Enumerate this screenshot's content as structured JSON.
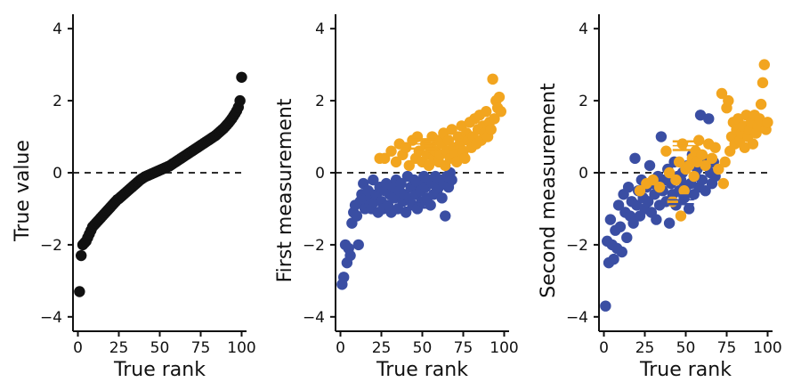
{
  "colors": {
    "black": "#111111",
    "blue": "#3a4ea3",
    "orange": "#f2a51f"
  },
  "chart_data": [
    {
      "type": "scatter",
      "xlabel": "True rank",
      "ylabel": "True value",
      "xlim": [
        -3,
        103
      ],
      "ylim": [
        -4.4,
        4.4
      ],
      "xticks": [
        0,
        25,
        50,
        75,
        100
      ],
      "yticks": [
        -4,
        -2,
        0,
        2,
        4
      ],
      "grid": false,
      "reference_line_y": 0,
      "series": [
        {
          "color": "black",
          "x": [
            1,
            2,
            3,
            4,
            5,
            6,
            7,
            8,
            9,
            10,
            11,
            12,
            13,
            14,
            15,
            16,
            17,
            18,
            19,
            20,
            21,
            22,
            23,
            24,
            25,
            26,
            27,
            28,
            29,
            30,
            31,
            32,
            33,
            34,
            35,
            36,
            37,
            38,
            39,
            40,
            41,
            42,
            43,
            44,
            45,
            46,
            47,
            48,
            49,
            50,
            51,
            52,
            53,
            54,
            55,
            56,
            57,
            58,
            59,
            60,
            61,
            62,
            63,
            64,
            65,
            66,
            67,
            68,
            69,
            70,
            71,
            72,
            73,
            74,
            75,
            76,
            77,
            78,
            79,
            80,
            81,
            82,
            83,
            84,
            85,
            86,
            87,
            88,
            89,
            90,
            91,
            92,
            93,
            94,
            95,
            96,
            97,
            98,
            99,
            100
          ],
          "y": [
            -3.3,
            -2.3,
            -2.0,
            -1.95,
            -1.9,
            -1.8,
            -1.7,
            -1.6,
            -1.5,
            -1.45,
            -1.4,
            -1.35,
            -1.3,
            -1.25,
            -1.2,
            -1.15,
            -1.1,
            -1.05,
            -1.0,
            -0.95,
            -0.9,
            -0.85,
            -0.8,
            -0.75,
            -0.72,
            -0.68,
            -0.64,
            -0.6,
            -0.56,
            -0.52,
            -0.48,
            -0.44,
            -0.4,
            -0.36,
            -0.32,
            -0.28,
            -0.24,
            -0.2,
            -0.17,
            -0.14,
            -0.11,
            -0.09,
            -0.07,
            -0.05,
            -0.03,
            -0.01,
            0.01,
            0.03,
            0.05,
            0.07,
            0.09,
            0.11,
            0.13,
            0.15,
            0.17,
            0.19,
            0.22,
            0.25,
            0.28,
            0.31,
            0.34,
            0.37,
            0.4,
            0.43,
            0.46,
            0.49,
            0.52,
            0.55,
            0.58,
            0.61,
            0.64,
            0.67,
            0.7,
            0.73,
            0.76,
            0.79,
            0.82,
            0.85,
            0.88,
            0.91,
            0.94,
            0.97,
            1.0,
            1.03,
            1.07,
            1.11,
            1.15,
            1.19,
            1.23,
            1.28,
            1.33,
            1.38,
            1.44,
            1.5,
            1.57,
            1.64,
            1.72,
            1.82,
            2.0,
            2.65
          ]
        }
      ]
    },
    {
      "type": "scatter",
      "xlabel": "True rank",
      "ylabel": "First measurement",
      "xlim": [
        -3,
        103
      ],
      "ylim": [
        -4.4,
        4.4
      ],
      "xticks": [
        0,
        25,
        50,
        75,
        100
      ],
      "yticks": [
        -4,
        -2,
        0,
        2,
        4
      ],
      "grid": false,
      "reference_line_y": 0,
      "series": [
        {
          "color": "blue",
          "x": [
            1,
            2,
            3,
            4,
            5,
            6,
            7,
            8,
            9,
            10,
            11,
            12,
            13,
            14,
            15,
            16,
            17,
            18,
            19,
            20,
            21,
            22,
            23,
            24,
            25,
            26,
            27,
            28,
            29,
            30,
            31,
            32,
            33,
            34,
            35,
            36,
            37,
            38,
            39,
            40,
            41,
            42,
            43,
            44,
            45,
            46,
            47,
            48,
            49,
            50,
            51,
            52,
            53,
            54,
            55,
            56,
            57,
            58,
            59,
            60,
            61,
            62,
            63,
            64,
            65,
            66,
            67,
            68
          ],
          "y": [
            -3.1,
            -2.9,
            -2.0,
            -2.5,
            -2.1,
            -2.3,
            -1.4,
            -1.1,
            -0.9,
            -1.2,
            -2.0,
            -0.8,
            -0.6,
            -0.3,
            -1.0,
            -0.7,
            -0.5,
            -0.9,
            -1.0,
            -0.2,
            -0.8,
            -0.6,
            -1.1,
            -0.4,
            -0.8,
            -1.0,
            -0.5,
            -0.3,
            -0.9,
            -0.6,
            -1.1,
            -0.4,
            -0.7,
            -0.2,
            -1.0,
            -0.5,
            -0.3,
            -0.8,
            -0.6,
            -1.1,
            -0.1,
            -0.7,
            -0.4,
            -0.9,
            -0.2,
            -0.6,
            -1.0,
            -0.3,
            -0.5,
            -0.8,
            -0.1,
            -0.4,
            -0.7,
            -0.2,
            -0.9,
            -0.3,
            -0.6,
            -0.1,
            -0.5,
            -0.4,
            -0.2,
            -0.7,
            -0.3,
            -1.2,
            -0.1,
            -0.4,
            0.0,
            -0.2
          ]
        },
        {
          "color": "orange",
          "x": [
            24,
            27,
            31,
            34,
            36,
            38,
            40,
            42,
            44,
            46,
            47,
            48,
            50,
            52,
            53,
            54,
            55,
            56,
            57,
            58,
            59,
            60,
            61,
            62,
            63,
            64,
            65,
            66,
            67,
            68,
            69,
            70,
            71,
            72,
            73,
            74,
            75,
            76,
            77,
            78,
            79,
            80,
            81,
            82,
            83,
            84,
            85,
            86,
            87,
            88,
            89,
            90,
            91,
            92,
            93,
            94,
            95,
            96,
            97,
            98
          ],
          "y": [
            0.4,
            0.4,
            0.6,
            0.3,
            0.8,
            0.5,
            0.7,
            0.2,
            0.9,
            0.4,
            1.0,
            0.6,
            0.3,
            0.8,
            0.5,
            0.2,
            0.7,
            1.0,
            0.4,
            0.6,
            0.9,
            0.3,
            0.5,
            0.8,
            1.1,
            0.2,
            0.6,
            0.9,
            0.4,
            1.2,
            0.7,
            0.5,
            0.3,
            1.0,
            0.8,
            1.3,
            0.6,
            0.4,
            1.1,
            0.9,
            1.4,
            0.7,
            1.0,
            1.5,
            0.8,
            1.2,
            1.6,
            0.9,
            1.3,
            1.1,
            1.7,
            1.0,
            1.4,
            1.2,
            2.6,
            1.5,
            2.0,
            1.8,
            2.1,
            1.7
          ]
        }
      ],
      "markers": [
        {
          "color": "orange",
          "x": 50,
          "y": 0.8,
          "x_half_width": 8,
          "y_error": 0.13
        },
        {
          "color": "blue",
          "x": 47,
          "y": -0.85,
          "x_half_width": 8,
          "y_error": 0.12
        }
      ]
    },
    {
      "type": "scatter",
      "xlabel": "True rank",
      "ylabel": "Second measurement",
      "xlim": [
        -3,
        103
      ],
      "ylim": [
        -4.4,
        4.4
      ],
      "xticks": [
        0,
        25,
        50,
        75,
        100
      ],
      "yticks": [
        -4,
        -2,
        0,
        2,
        4
      ],
      "grid": false,
      "reference_line_y": 0,
      "series": [
        {
          "color": "blue",
          "x": [
            1,
            2,
            3,
            4,
            5,
            6,
            7,
            8,
            9,
            10,
            11,
            12,
            13,
            14,
            15,
            16,
            17,
            18,
            19,
            20,
            21,
            22,
            23,
            24,
            25,
            26,
            27,
            28,
            29,
            30,
            31,
            32,
            33,
            34,
            35,
            36,
            37,
            38,
            39,
            40,
            41,
            42,
            43,
            44,
            45,
            46,
            47,
            48,
            49,
            50,
            51,
            52,
            53,
            54,
            55,
            56,
            57,
            58,
            59,
            60,
            61,
            62,
            63,
            64,
            65,
            66,
            67,
            68
          ],
          "y": [
            -3.7,
            -1.9,
            -2.5,
            -1.3,
            -2.0,
            -2.4,
            -1.6,
            -2.1,
            -0.9,
            -1.5,
            -2.2,
            -0.6,
            -1.1,
            -1.8,
            -0.4,
            -1.2,
            -0.8,
            -1.4,
            0.4,
            -0.9,
            -0.5,
            -1.2,
            -0.2,
            -0.7,
            -1.0,
            -0.4,
            -0.8,
            0.2,
            -1.1,
            -0.3,
            -0.6,
            -1.3,
            -0.1,
            -0.9,
            1.0,
            -0.5,
            -0.2,
            -0.8,
            0.1,
            -1.4,
            -0.3,
            -0.6,
            0.3,
            -0.9,
            -0.1,
            -0.5,
            -0.2,
            0.0,
            -0.7,
            -0.4,
            0.2,
            -1.0,
            -0.3,
            0.5,
            -0.6,
            -0.1,
            0.1,
            -0.4,
            1.6,
            -0.2,
            0.4,
            -0.5,
            0.2,
            1.5,
            0.0,
            -0.3,
            0.3,
            -0.1
          ]
        },
        {
          "color": "orange",
          "x": [
            22,
            26,
            30,
            34,
            38,
            40,
            42,
            44,
            46,
            47,
            48,
            49,
            50,
            52,
            54,
            55,
            56,
            57,
            58,
            60,
            62,
            64,
            66,
            68,
            70,
            72,
            73,
            74,
            75,
            76,
            77,
            78,
            79,
            80,
            81,
            82,
            83,
            84,
            85,
            86,
            87,
            88,
            89,
            90,
            91,
            92,
            93,
            94,
            95,
            96,
            97,
            98,
            99,
            100
          ],
          "y": [
            -0.5,
            -0.3,
            -0.2,
            -0.4,
            0.6,
            0.0,
            -0.8,
            -0.2,
            0.3,
            -1.2,
            0.8,
            -0.5,
            0.1,
            0.2,
            0.4,
            -0.1,
            0.6,
            0.3,
            0.9,
            0.5,
            0.2,
            0.8,
            0.4,
            0.7,
            0.1,
            2.2,
            -0.3,
            0.3,
            1.8,
            2.0,
            0.6,
            1.0,
            1.4,
            0.8,
            1.2,
            1.5,
            0.9,
            1.1,
            1.3,
            0.7,
            1.6,
            1.0,
            1.2,
            1.4,
            0.8,
            1.6,
            1.1,
            1.3,
            1.5,
            1.9,
            2.5,
            3.0,
            1.2,
            1.4
          ]
        }
      ],
      "markers": [
        {
          "color": "orange",
          "x": 50,
          "y": 0.75,
          "x_half_width": 8,
          "y_error": 0.12
        },
        {
          "color": "blue",
          "x": 47,
          "y": -0.75,
          "x_half_width": 8,
          "y_error": 0.12
        }
      ]
    }
  ]
}
